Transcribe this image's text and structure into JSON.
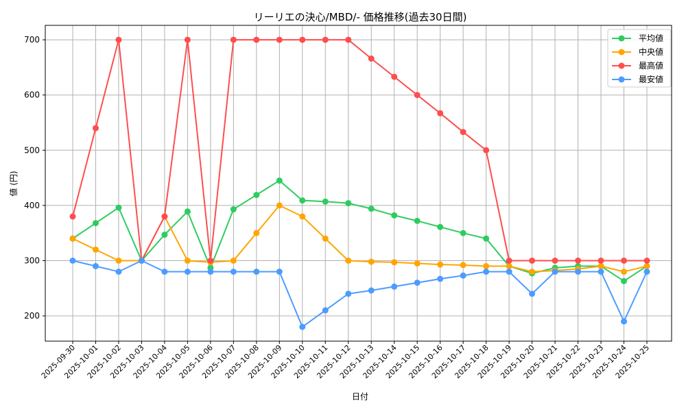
{
  "chart_data": {
    "type": "line",
    "title": "リーリエの決心/MBD/- 価格推移(過去30日間)",
    "xlabel": "日付",
    "ylabel": "値 (円)",
    "ylim": [
      155,
      725
    ],
    "yticks": [
      200,
      300,
      400,
      500,
      600,
      700
    ],
    "grid": true,
    "legend_position": "upper right",
    "x": [
      "2025-09-30",
      "2025-10-01",
      "2025-10-02",
      "2025-10-03",
      "2025-10-04",
      "2025-10-05",
      "2025-10-06",
      "2025-10-07",
      "2025-10-08",
      "2025-10-09",
      "2025-10-10",
      "2025-10-11",
      "2025-10-12",
      "2025-10-13",
      "2025-10-14",
      "2025-10-15",
      "2025-10-16",
      "2025-10-17",
      "2025-10-18",
      "2025-10-19",
      "2025-10-20",
      "2025-10-21",
      "2025-10-22",
      "2025-10-23",
      "2025-10-24",
      "2025-10-25"
    ],
    "series": [
      {
        "name": "平均値",
        "color": "#2ecc5f",
        "values": [
          340,
          368,
          396,
          300,
          347,
          389,
          287,
          393,
          419,
          445,
          409,
          407,
          404,
          394,
          382,
          372,
          361,
          350,
          340,
          290,
          277,
          287,
          290,
          290,
          263,
          290
        ]
      },
      {
        "name": "中央値",
        "color": "#ffa500",
        "values": [
          340,
          320,
          300,
          300,
          380,
          300,
          297,
          300,
          350,
          400,
          380,
          340,
          300,
          298,
          297,
          295,
          293,
          292,
          290,
          290,
          280,
          282,
          285,
          290,
          280,
          290
        ]
      },
      {
        "name": "最高値",
        "color": "#ff4d4d",
        "values": [
          380,
          540,
          700,
          300,
          380,
          700,
          300,
          700,
          700,
          700,
          700,
          700,
          700,
          666,
          633,
          600,
          567,
          533,
          500,
          300,
          300,
          300,
          300,
          300,
          300,
          300
        ]
      },
      {
        "name": "最安値",
        "color": "#4d9bff",
        "values": [
          300,
          290,
          280,
          300,
          280,
          280,
          280,
          280,
          280,
          280,
          180,
          210,
          240,
          246,
          253,
          260,
          267,
          273,
          280,
          280,
          240,
          280,
          280,
          280,
          190,
          280
        ]
      }
    ]
  }
}
